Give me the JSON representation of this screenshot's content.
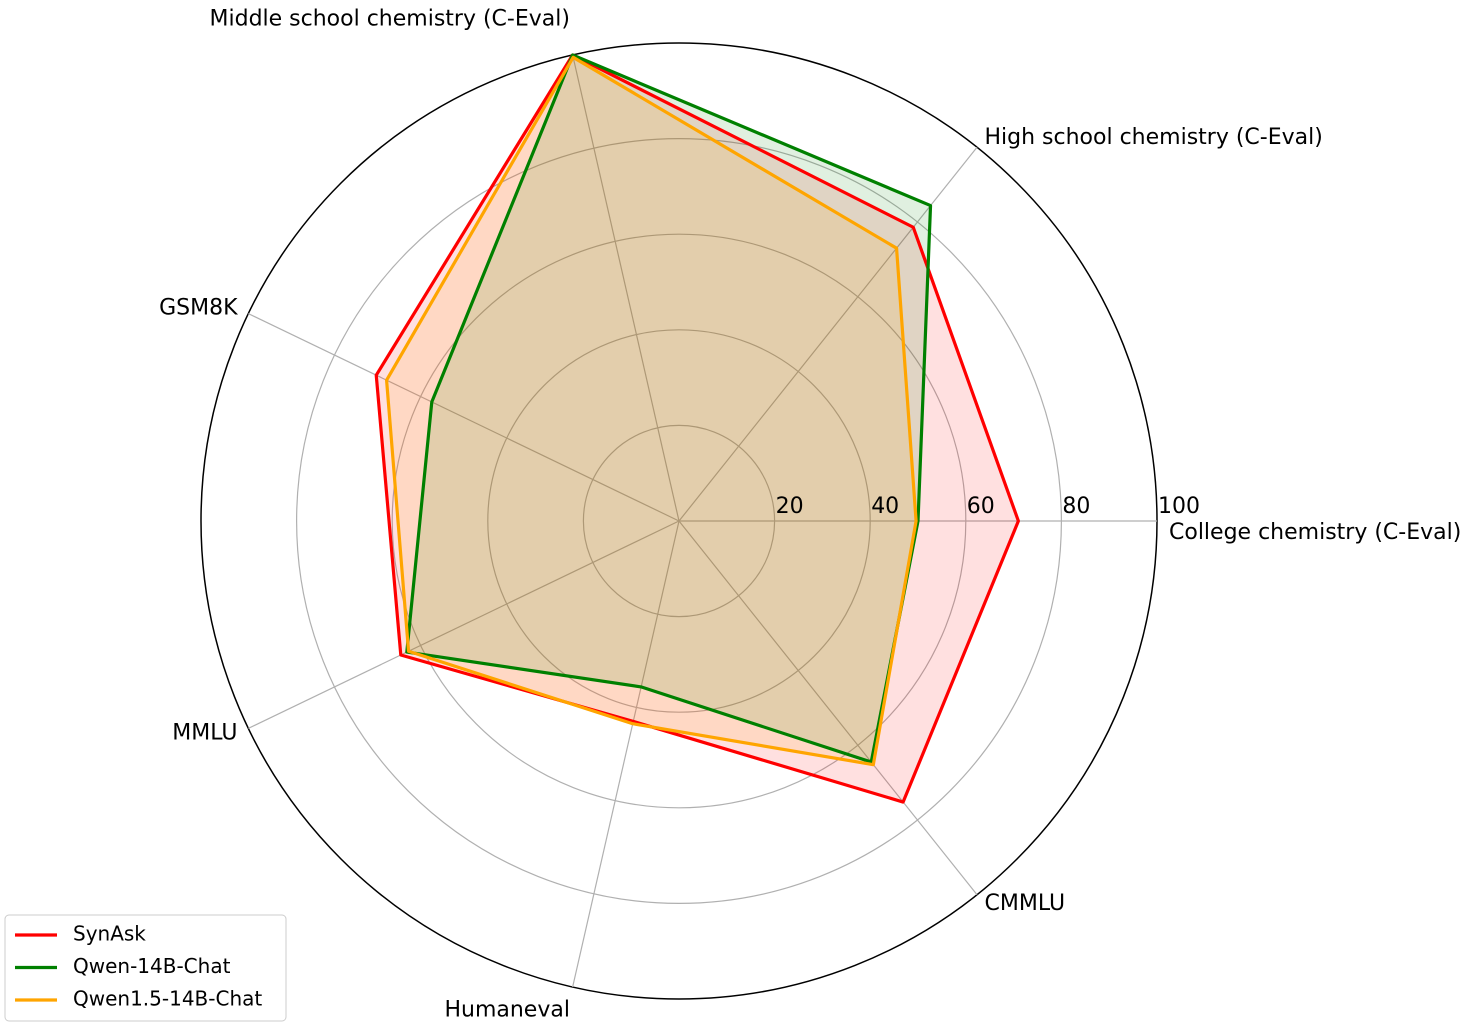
{
  "chart_data": {
    "type": "radar",
    "categories": [
      "College chemistry (C-Eval)",
      "High school chemistry (C-Eval)",
      "Middle school chemistry (C-Eval)",
      "GSM8K",
      "MMLU",
      "Humaneval",
      "CMMLU"
    ],
    "series": [
      {
        "name": "SynAsk",
        "color": "#ff0000",
        "values": [
          71,
          78.6,
          100,
          70.3,
          64.6,
          43,
          75.2
        ]
      },
      {
        "name": "Qwen-14B-Chat",
        "color": "#008000",
        "values": [
          50,
          84.4,
          100,
          57.4,
          63.2,
          35.6,
          64.5
        ]
      },
      {
        "name": "Qwen1.5-14B-Chat",
        "color": "#ffa500",
        "values": [
          49.6,
          73,
          99.5,
          67.9,
          62.8,
          43.5,
          65.2
        ]
      }
    ],
    "ylim": [
      0,
      100
    ],
    "yticks": [
      20,
      40,
      60,
      80,
      100
    ],
    "grid": true,
    "legend": "lower left"
  }
}
